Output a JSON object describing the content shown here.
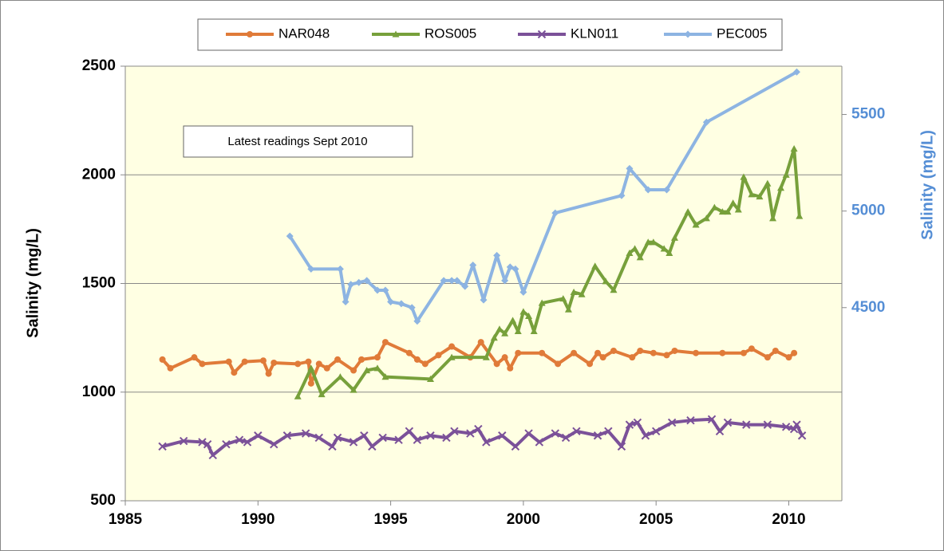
{
  "chart_data": {
    "type": "line",
    "annotation": "Latest readings  Sept 2010",
    "ylabel": "Salinity  (mg/L)",
    "y2label": "Salinity (mg/L)",
    "xlim": [
      1985,
      2012
    ],
    "xticks": [
      1985,
      1990,
      1995,
      2000,
      2005,
      2010
    ],
    "ylim": [
      500,
      2500
    ],
    "yticks": [
      500,
      1000,
      1500,
      2000,
      2500
    ],
    "y2lim": [
      3500,
      5750
    ],
    "y2ticks": [
      4500,
      5000,
      5500
    ],
    "grid": true,
    "legend": "top",
    "series": [
      {
        "name": "NAR048",
        "color": "#E07B39",
        "marker": "circle",
        "x": [
          1986.4,
          1986.7,
          1987.6,
          1987.9,
          1988.9,
          1989.1,
          1989.5,
          1990.2,
          1990.4,
          1990.6,
          1991.5,
          1991.9,
          1992.0,
          1992.3,
          1992.6,
          1993.0,
          1993.6,
          1993.9,
          1994.5,
          1994.8,
          1995.7,
          1996.0,
          1996.3,
          1996.8,
          1997.3,
          1998.0,
          1998.4,
          1999.0,
          1999.3,
          1999.5,
          1999.8,
          2000.7,
          2001.3,
          2001.9,
          2002.5,
          2002.8,
          2003.0,
          2003.4,
          2004.1,
          2004.4,
          2004.9,
          2005.4,
          2005.7,
          2006.5,
          2007.5,
          2008.3,
          2008.6,
          2009.2,
          2009.5,
          2010.0,
          2010.2
        ],
        "values": [
          1150,
          1110,
          1160,
          1130,
          1140,
          1090,
          1140,
          1145,
          1085,
          1135,
          1130,
          1140,
          1040,
          1130,
          1110,
          1150,
          1100,
          1150,
          1160,
          1230,
          1180,
          1150,
          1130,
          1170,
          1210,
          1160,
          1230,
          1130,
          1160,
          1110,
          1180,
          1180,
          1130,
          1180,
          1130,
          1180,
          1160,
          1190,
          1160,
          1190,
          1180,
          1170,
          1190,
          1180,
          1180,
          1180,
          1200,
          1160,
          1190,
          1160,
          1180
        ]
      },
      {
        "name": "ROS005",
        "color": "#77A03B",
        "marker": "triangle",
        "x": [
          1991.5,
          1992.0,
          1992.4,
          1993.1,
          1993.6,
          1994.1,
          1994.5,
          1994.8,
          1996.5,
          1997.3,
          1998.6,
          1998.9,
          1999.1,
          1999.3,
          1999.6,
          1999.8,
          2000.0,
          2000.2,
          2000.4,
          2000.7,
          2001.5,
          2001.7,
          2001.9,
          2002.2,
          2002.7,
          2003.1,
          2003.4,
          2004.0,
          2004.2,
          2004.4,
          2004.7,
          2004.9,
          2005.3,
          2005.5,
          2005.7,
          2006.2,
          2006.5,
          2006.9,
          2007.2,
          2007.5,
          2007.7,
          2007.9,
          2008.1,
          2008.3,
          2008.6,
          2008.9,
          2009.2,
          2009.4,
          2009.7,
          2009.9,
          2010.2,
          2010.4
        ],
        "values": [
          980,
          1110,
          990,
          1070,
          1010,
          1100,
          1110,
          1070,
          1060,
          1160,
          1160,
          1250,
          1290,
          1270,
          1330,
          1280,
          1370,
          1350,
          1280,
          1410,
          1430,
          1380,
          1460,
          1450,
          1580,
          1510,
          1470,
          1640,
          1660,
          1620,
          1690,
          1690,
          1660,
          1640,
          1710,
          1830,
          1770,
          1800,
          1850,
          1830,
          1830,
          1870,
          1840,
          1990,
          1910,
          1900,
          1960,
          1800,
          1940,
          2000,
          2120,
          1810
        ]
      },
      {
        "name": "KLN011",
        "color": "#7B5199",
        "marker": "x",
        "x": [
          1986.4,
          1987.2,
          1987.9,
          1988.1,
          1988.3,
          1988.8,
          1989.3,
          1989.6,
          1990.0,
          1990.6,
          1991.1,
          1991.8,
          1992.3,
          1992.8,
          1993.0,
          1993.6,
          1994.0,
          1994.3,
          1994.7,
          1995.3,
          1995.7,
          1996.0,
          1996.5,
          1997.1,
          1997.4,
          1998.0,
          1998.3,
          1998.6,
          1999.2,
          1999.7,
          2000.2,
          2000.6,
          2001.2,
          2001.6,
          2002.0,
          2002.8,
          2003.2,
          2003.7,
          2004.0,
          2004.3,
          2004.6,
          2005.0,
          2005.6,
          2006.3,
          2007.1,
          2007.4,
          2007.7,
          2008.4,
          2009.2,
          2009.9,
          2010.2,
          2010.3,
          2010.5
        ],
        "values": [
          750,
          775,
          770,
          760,
          710,
          760,
          780,
          770,
          800,
          760,
          800,
          810,
          790,
          750,
          790,
          770,
          800,
          750,
          790,
          780,
          820,
          780,
          800,
          790,
          820,
          810,
          830,
          770,
          800,
          750,
          810,
          770,
          810,
          790,
          820,
          800,
          820,
          750,
          850,
          860,
          800,
          820,
          860,
          870,
          875,
          820,
          860,
          850,
          850,
          840,
          830,
          850,
          800
        ]
      },
      {
        "name": "PEC005",
        "color": "#8DB4E2",
        "marker": "diamond",
        "axis": "y2",
        "x": [
          1991.2,
          1992.0,
          1993.1,
          1993.3,
          1993.5,
          1993.8,
          1994.1,
          1994.5,
          1994.8,
          1995.0,
          1995.4,
          1995.8,
          1996.0,
          1997.0,
          1997.3,
          1997.5,
          1997.8,
          1998.1,
          1998.5,
          1999.0,
          1999.3,
          1999.5,
          1999.7,
          2000.0,
          2001.2,
          2003.7,
          2004.0,
          2004.7,
          2005.4,
          2006.9,
          2010.3
        ],
        "values": [
          4870,
          4700,
          4700,
          4530,
          4620,
          4630,
          4640,
          4590,
          4590,
          4530,
          4520,
          4500,
          4430,
          4640,
          4640,
          4640,
          4610,
          4720,
          4540,
          4770,
          4640,
          4710,
          4700,
          4580,
          4990,
          5080,
          5220,
          5110,
          5110,
          5460,
          5720
        ]
      }
    ]
  }
}
